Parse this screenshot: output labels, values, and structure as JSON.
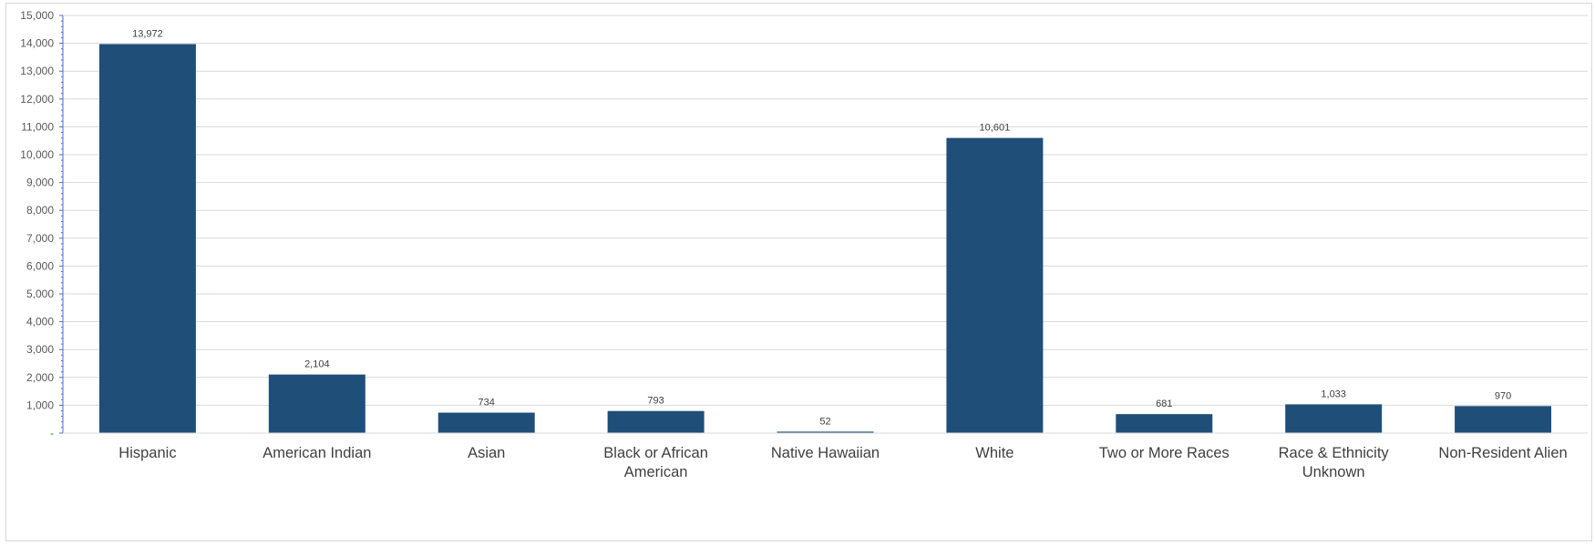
{
  "chart_data": {
    "type": "bar",
    "categories": [
      "Hispanic",
      "American Indian",
      "Asian",
      "Black or African American",
      "Native Hawaiian",
      "White",
      "Two or More Races",
      "Race & Ethnicity Unknown",
      "Non-Resident Alien"
    ],
    "category_label_lines": [
      [
        "Hispanic"
      ],
      [
        "American Indian"
      ],
      [
        "Asian"
      ],
      [
        "Black or African",
        "American"
      ],
      [
        "Native Hawaiian"
      ],
      [
        "White"
      ],
      [
        "Two or More Races"
      ],
      [
        "Race & Ethnicity",
        "Unknown"
      ],
      [
        "Non-Resident Alien"
      ]
    ],
    "values": [
      13972,
      2104,
      734,
      793,
      52,
      10601,
      681,
      1033,
      970
    ],
    "data_labels": [
      "13,972",
      "2,104",
      "734",
      "793",
      "52",
      "10,601",
      "681",
      "1,033",
      "970"
    ],
    "ylim": [
      0,
      15000
    ],
    "y_ticks": [
      0,
      1000,
      2000,
      3000,
      4000,
      5000,
      6000,
      7000,
      8000,
      9000,
      10000,
      11000,
      12000,
      13000,
      14000,
      15000
    ],
    "y_tick_labels": [
      "-",
      "1,000",
      "2,000",
      "3,000",
      "4,000",
      "5,000",
      "6,000",
      "7,000",
      "8,000",
      "9,000",
      "10,000",
      "11,000",
      "12,000",
      "13,000",
      "14,000",
      "15,000"
    ],
    "title": "",
    "xlabel": "",
    "ylabel": "",
    "grid": true,
    "legend": "none",
    "bar_color": "#1F4E79",
    "gridline_color": "#d9d9d9",
    "axis_color": "#4472C4"
  }
}
